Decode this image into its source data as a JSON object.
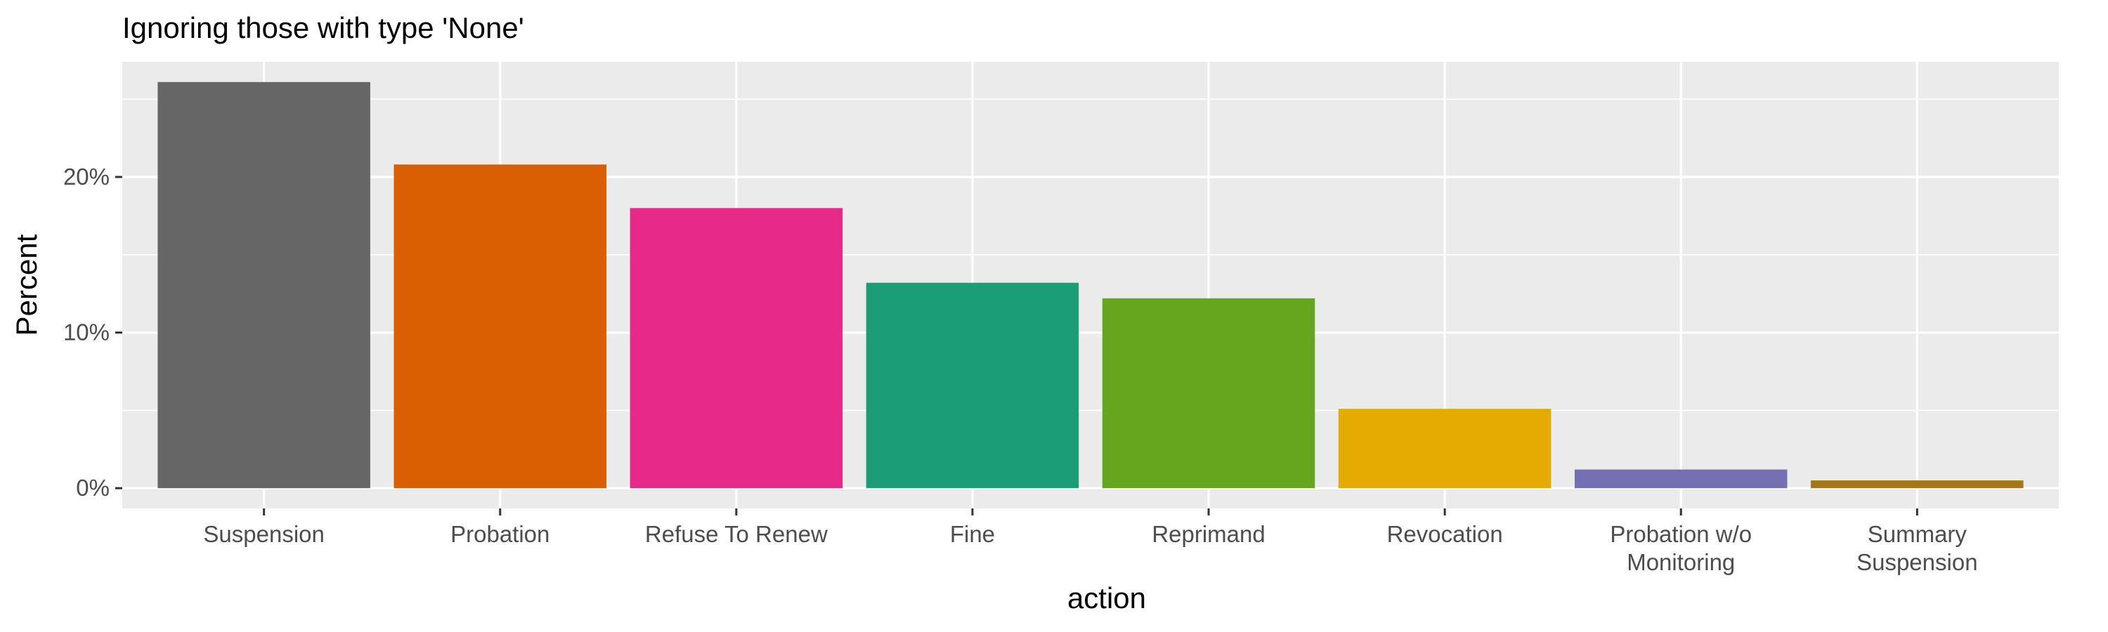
{
  "chart_data": {
    "type": "bar",
    "title": "Ignoring those with type 'None'",
    "xlabel": "action",
    "ylabel": "Percent",
    "categories": [
      "Suspension",
      "Probation",
      "Refuse To Renew",
      "Fine",
      "Reprimand",
      "Revocation",
      "Probation w/o Monitoring",
      "Summary Suspension"
    ],
    "category_lines": [
      [
        "Suspension"
      ],
      [
        "Probation"
      ],
      [
        "Refuse To Renew"
      ],
      [
        "Fine"
      ],
      [
        "Reprimand"
      ],
      [
        "Revocation"
      ],
      [
        "Probation w/o",
        "Monitoring"
      ],
      [
        "Summary",
        "Suspension"
      ]
    ],
    "values": [
      26.1,
      20.8,
      18.0,
      13.2,
      12.2,
      5.1,
      1.2,
      0.5
    ],
    "colors": [
      "#666666",
      "#D95F02",
      "#E7298A",
      "#1B9E77",
      "#66A61E",
      "#E6AB02",
      "#7570B3",
      "#A6761D"
    ],
    "ylim": [
      -1.3,
      27.4
    ],
    "yticks": [
      0,
      10,
      20
    ],
    "ytick_labels": [
      "0%",
      "10%",
      "20%"
    ],
    "grid": true,
    "panel_background": "#EBEBEB",
    "grid_color": "#FFFFFF",
    "legend": "none"
  }
}
